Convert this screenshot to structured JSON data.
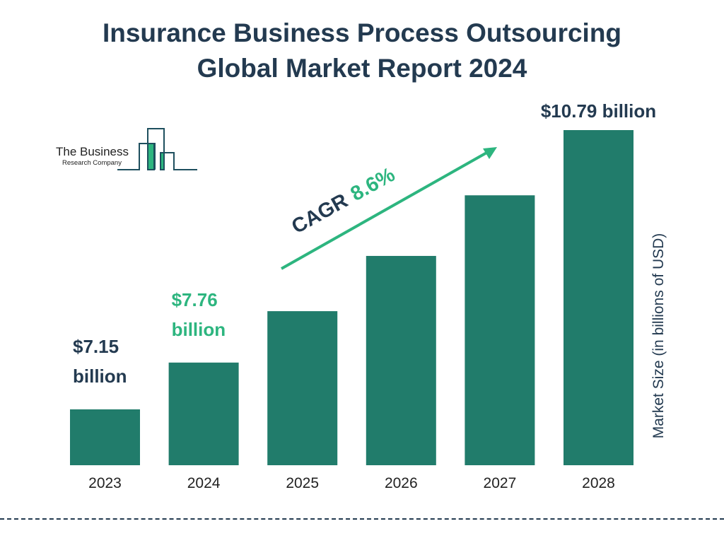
{
  "title_line1": "Insurance Business Process Outsourcing",
  "title_line2": "Global Market Report 2024",
  "logo": {
    "line1": "The Business",
    "line2": "Research Company"
  },
  "colors": {
    "bar": "#217c6b",
    "text": "#233a50",
    "accent": "#2db57f"
  },
  "chart_data": {
    "type": "bar",
    "title": "Insurance Business Process Outsourcing Global Market Report 2024",
    "ylabel": "Market Size (in billions of USD)",
    "categories": [
      "2023",
      "2024",
      "2025",
      "2026",
      "2027",
      "2028"
    ],
    "values": [
      7.15,
      7.76,
      8.43,
      9.15,
      9.94,
      10.79
    ],
    "data_labels": [
      {
        "category": "2023",
        "line1": "$7.15",
        "line2": "billion",
        "color": "#233a50"
      },
      {
        "category": "2024",
        "line1": "$7.76",
        "line2": "billion",
        "color": "#2db57f"
      },
      {
        "category": "2028",
        "line1": "$10.79 billion",
        "line2": "",
        "color": "#233a50"
      }
    ],
    "annotation": {
      "label": "CAGR",
      "value": "8.6%"
    },
    "grid": false
  }
}
